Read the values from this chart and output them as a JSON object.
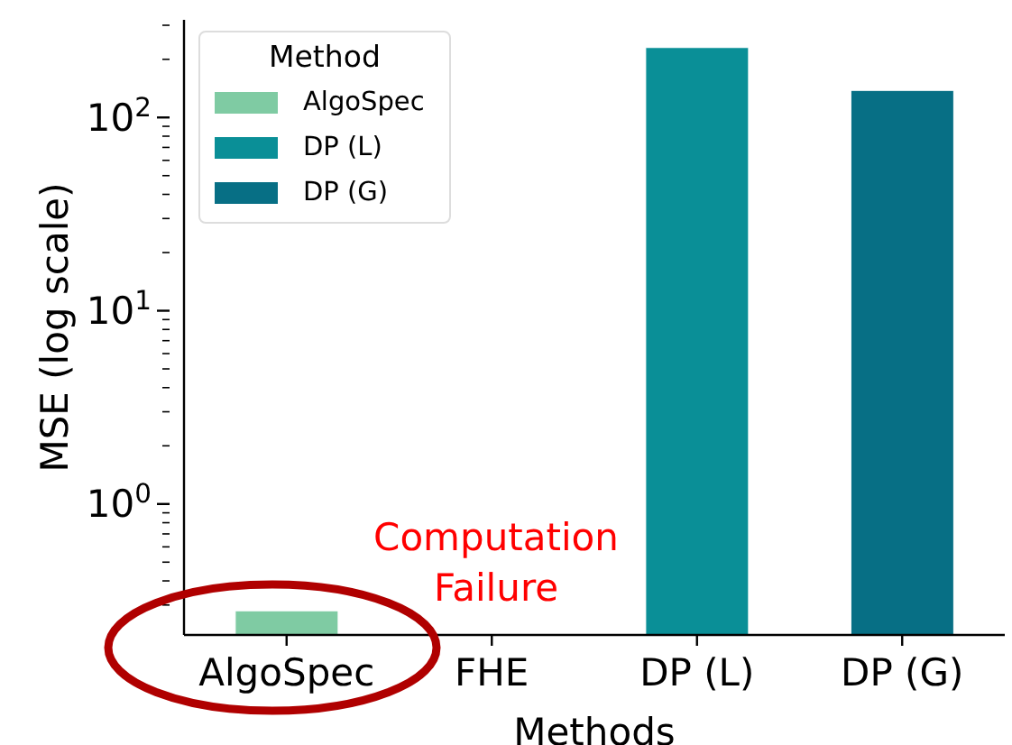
{
  "chart_data": {
    "type": "bar",
    "xlabel": "Methods",
    "ylabel": "MSE (log scale)",
    "legend_title": "Method",
    "categories": [
      "AlgoSpec",
      "FHE",
      "DP (L)",
      "DP (G)"
    ],
    "series": [
      {
        "name": "AlgoSpec",
        "color": "#7fcba3",
        "values": [
          0.28,
          null,
          null,
          null
        ]
      },
      {
        "name": "DP (L)",
        "color": "#0a8f97",
        "values": [
          null,
          null,
          230,
          null
        ]
      },
      {
        "name": "DP (G)",
        "color": "#076f85",
        "values": [
          null,
          null,
          null,
          138
        ]
      }
    ],
    "stacked": true,
    "log": "y",
    "ylim": [
      0.21,
      320
    ],
    "yticks": [
      {
        "value": 0.3,
        "label": null
      },
      {
        "value": 0.4,
        "label": null
      },
      {
        "value": 0.5,
        "label": null
      },
      {
        "value": 0.6,
        "label": null
      },
      {
        "value": 0.7,
        "label": null
      },
      {
        "value": 0.8,
        "label": null
      },
      {
        "value": 0.9,
        "label": null
      },
      {
        "value": 1,
        "label": "10$^{0}$"
      },
      {
        "value": 2,
        "label": null
      },
      {
        "value": 3,
        "label": null
      },
      {
        "value": 4,
        "label": null
      },
      {
        "value": 5,
        "label": null
      },
      {
        "value": 6,
        "label": null
      },
      {
        "value": 7,
        "label": null
      },
      {
        "value": 8,
        "label": null
      },
      {
        "value": 9,
        "label": null
      },
      {
        "value": 10,
        "label": "10$^{1}$"
      },
      {
        "value": 20,
        "label": null
      },
      {
        "value": 30,
        "label": null
      },
      {
        "value": 40,
        "label": null
      },
      {
        "value": 50,
        "label": null
      },
      {
        "value": 60,
        "label": null
      },
      {
        "value": 70,
        "label": null
      },
      {
        "value": 80,
        "label": null
      },
      {
        "value": 90,
        "label": null
      },
      {
        "value": 100,
        "label": "10$^{2}$"
      },
      {
        "value": 200,
        "label": null
      },
      {
        "value": 300,
        "label": null
      }
    ],
    "grid": false,
    "legend": "top left",
    "annotations": [
      "Computation Failure"
    ]
  }
}
